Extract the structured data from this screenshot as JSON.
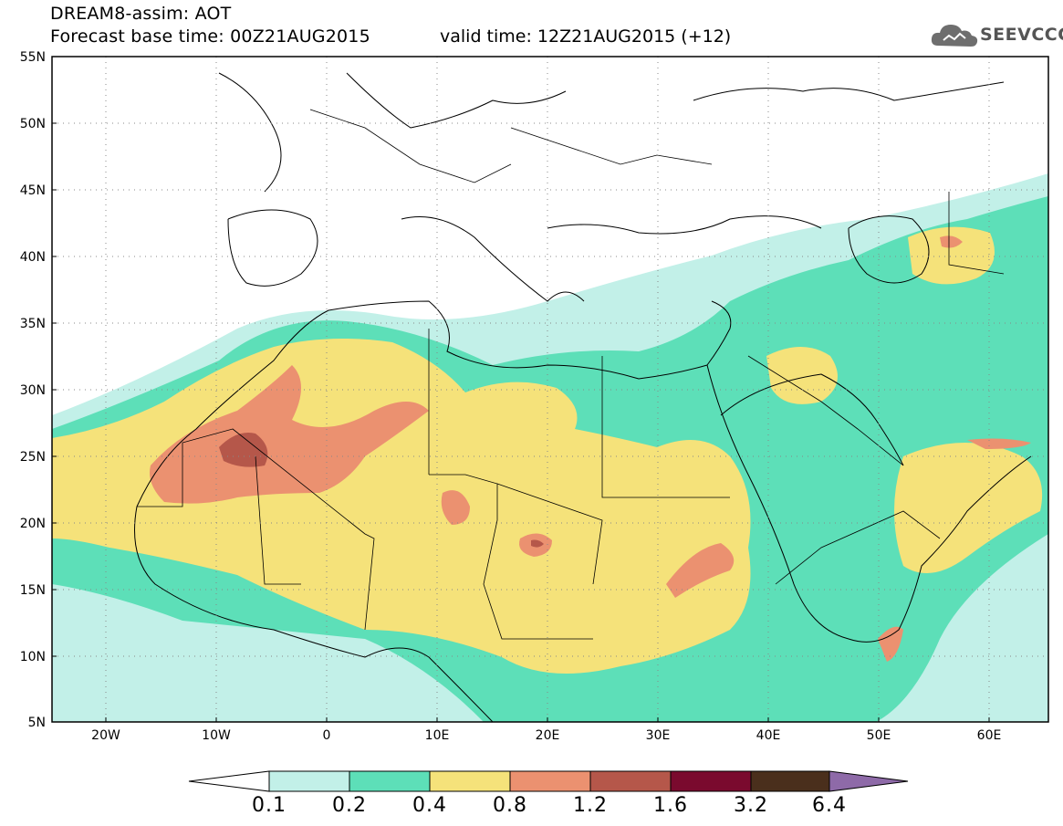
{
  "header": {
    "model_line": "DREAM8-assim: AOT",
    "base_time": "Forecast base time: 00Z21AUG2015",
    "valid_time": "valid time: 12Z21AUG2015 (+12)",
    "logo_text": "SEEVCCC"
  },
  "map": {
    "projection": "equirectangular",
    "lon_range": [
      -25,
      65
    ],
    "lat_range": [
      5,
      55
    ],
    "lat_labels": [
      "55N",
      "50N",
      "45N",
      "40N",
      "35N",
      "30N",
      "25N",
      "20N",
      "15N",
      "10N",
      "5N"
    ],
    "lon_labels": [
      "20W",
      "10W",
      "0",
      "10E",
      "20E",
      "30E",
      "40E",
      "50E",
      "60E"
    ],
    "gridlines": "dotted",
    "field": "Aerosol optical thickness (AOT)"
  },
  "colorbar": {
    "labels": [
      "0.1",
      "0.2",
      "0.4",
      "0.8",
      "1.2",
      "1.6",
      "3.2",
      "6.4"
    ],
    "colors": [
      "#ffffff",
      "#c2f0e8",
      "#5ddfb8",
      "#f5e27a",
      "#eb9170",
      "#b5574a",
      "#7a0a2e",
      "#4a2f1c",
      "#8e6aa8"
    ]
  }
}
